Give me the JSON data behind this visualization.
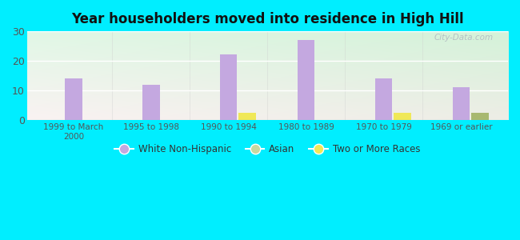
{
  "title": "Year householders moved into residence in High Hill",
  "categories": [
    "1999 to March\n2000",
    "1995 to 1998",
    "1990 to 1994",
    "1980 to 1989",
    "1970 to 1979",
    "1969 or earlier"
  ],
  "white_non_hispanic": [
    14,
    12,
    22,
    27,
    14,
    11
  ],
  "asian": [
    0,
    0,
    0,
    0,
    0,
    0
  ],
  "two_or_more_races": [
    0,
    0,
    2.5,
    0,
    2.5,
    2.5
  ],
  "two_or_more_colors": [
    "#f0e858",
    "#f0e858",
    "#f0e858",
    "#f0e858",
    "#f0e858",
    "#a8b870"
  ],
  "bar_color_white": "#c4a8e0",
  "bar_color_asian": "#c8d8a0",
  "bar_color_two_yellow": "#f0e858",
  "bar_color_two_green": "#a8b870",
  "outer_bg": "#00eeff",
  "ylim": [
    0,
    30
  ],
  "yticks": [
    0,
    10,
    20,
    30
  ],
  "bar_width": 0.22,
  "watermark": "City-Data.com",
  "legend_labels": [
    "White Non-Hispanic",
    "Asian",
    "Two or More Races"
  ],
  "legend_colors": [
    "#c4a8e0",
    "#c8d8a0",
    "#f0e858"
  ]
}
